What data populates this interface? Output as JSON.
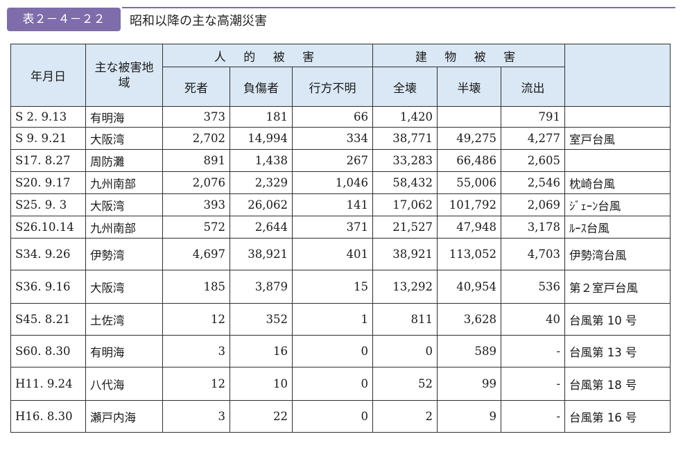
{
  "label": "表２－４－２２",
  "title": "昭和以降の主な高潮災害",
  "colors": {
    "label_bg": "#7e6cab",
    "header_bg": "#dae8f5"
  },
  "headers": {
    "date": "年月日",
    "area": "主な被害地域",
    "human_group": "人 的 被 害",
    "building_group": "建 物 被 害",
    "deaths": "死者",
    "injured": "負傷者",
    "missing": "行方不明",
    "destroyed": "全壊",
    "half": "半壊",
    "washed": "流出"
  },
  "rows": [
    {
      "date": "S 2. 9.13",
      "area": "有明海",
      "deaths": "373",
      "injured": "181",
      "missing": "66",
      "destroyed": "1,420",
      "half": "",
      "washed": "791",
      "name": ""
    },
    {
      "date": "S 9. 9.21",
      "area": "大阪湾",
      "deaths": "2,702",
      "injured": "14,994",
      "missing": "334",
      "destroyed": "38,771",
      "half": "49,275",
      "washed": "4,277",
      "name": "室戸台風"
    },
    {
      "date": "S17. 8.27",
      "area": "周防灘",
      "deaths": "891",
      "injured": "1,438",
      "missing": "267",
      "destroyed": "33,283",
      "half": "66,486",
      "washed": "2,605",
      "name": ""
    },
    {
      "date": "S20. 9.17",
      "area": "九州南部",
      "deaths": "2,076",
      "injured": "2,329",
      "missing": "1,046",
      "destroyed": "58,432",
      "half": "55,006",
      "washed": "2,546",
      "name": "枕崎台風"
    },
    {
      "date": "S25. 9. 3",
      "area": "大阪湾",
      "deaths": "393",
      "injured": "26,062",
      "missing": "141",
      "destroyed": "17,062",
      "half": "101,792",
      "washed": "2,069",
      "name": "ｼﾞｪｰﾝ台風"
    },
    {
      "date": "S26.10.14",
      "area": "九州南部",
      "deaths": "572",
      "injured": "2,644",
      "missing": "371",
      "destroyed": "21,527",
      "half": "47,948",
      "washed": "3,178",
      "name": "ﾙｰｽ台風"
    },
    {
      "date": "S34. 9.26",
      "area": "伊勢湾",
      "deaths": "4,697",
      "injured": "38,921",
      "missing": "401",
      "destroyed": "38,921",
      "half": "113,052",
      "washed": "4,703",
      "name": "伊勢湾台風"
    },
    {
      "date": "S36. 9.16",
      "area": "大阪湾",
      "deaths": "185",
      "injured": "3,879",
      "missing": "15",
      "destroyed": "13,292",
      "half": "40,954",
      "washed": "536",
      "name": "第２室戸台風"
    },
    {
      "date": "S45. 8.21",
      "area": "土佐湾",
      "deaths": "12",
      "injured": "352",
      "missing": "1",
      "destroyed": "811",
      "half": "3,628",
      "washed": "40",
      "name": "台風第 10 号"
    },
    {
      "date": "S60. 8.30",
      "area": "有明海",
      "deaths": "3",
      "injured": "16",
      "missing": "0",
      "destroyed": "0",
      "half": "589",
      "washed": "-",
      "name": "台風第 13 号"
    },
    {
      "date": "H11. 9.24",
      "area": "八代海",
      "deaths": "12",
      "injured": "10",
      "missing": "0",
      "destroyed": "52",
      "half": "99",
      "washed": "-",
      "name": "台風第 18 号"
    },
    {
      "date": "H16. 8.30",
      "area": "瀬戸内海",
      "deaths": "3",
      "injured": "22",
      "missing": "0",
      "destroyed": "2",
      "half": "9",
      "washed": "-",
      "name": "台風第 16 号"
    }
  ]
}
